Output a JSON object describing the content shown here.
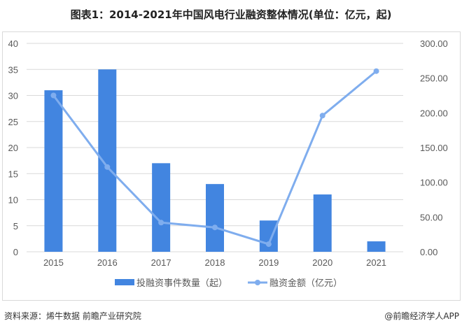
{
  "title": "图表1：2014-2021年中国风电行业融资整体情况(单位：亿元，起)",
  "chart_data": {
    "type": "bar",
    "title": "图表1：2014-2021年中国风电行业融资整体情况(单位：亿元，起)",
    "categories": [
      "2015",
      "2016",
      "2017",
      "2018",
      "2019",
      "2020",
      "2021"
    ],
    "series": [
      {
        "name": "投融资事件数量（起）",
        "type": "bar",
        "axis": "left",
        "color": "#4285e0",
        "values": [
          31,
          35,
          17,
          13,
          6,
          11,
          2
        ]
      },
      {
        "name": "融资金额（亿元）",
        "type": "line",
        "axis": "right",
        "color": "#7fadee",
        "values": [
          225,
          122,
          42,
          35,
          11,
          196,
          260
        ]
      }
    ],
    "left_axis": {
      "ylim": [
        0,
        40
      ],
      "ticks": [
        "0",
        "5",
        "10",
        "15",
        "20",
        "25",
        "30",
        "35",
        "40"
      ]
    },
    "right_axis": {
      "ylim": [
        0,
        300
      ],
      "ticks": [
        "0.00",
        "50.00",
        "100.00",
        "150.00",
        "200.00",
        "250.00",
        "300.00"
      ]
    },
    "xlabel": "",
    "ylabel": "",
    "grid": true,
    "legend_position": "bottom"
  },
  "legend": {
    "bar_label": "投融资事件数量（起）",
    "line_label": "融资金额（亿元）"
  },
  "footer": {
    "source": "资料来源：烯牛数据 前瞻产业研究院",
    "credit": "@前瞻经济学人APP"
  }
}
